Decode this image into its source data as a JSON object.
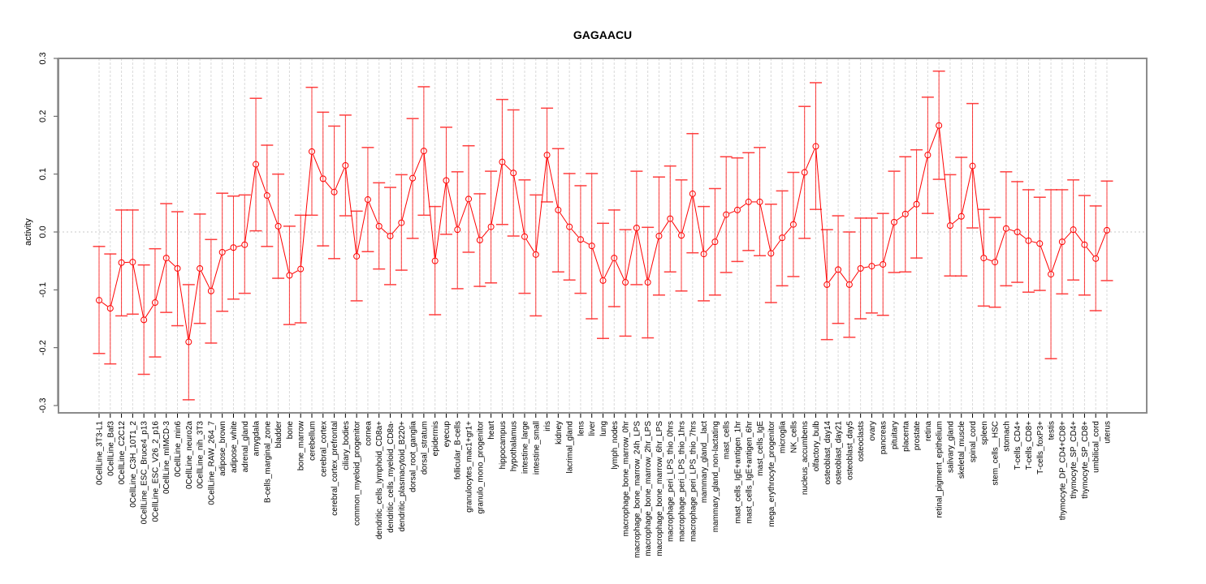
{
  "chart_data": {
    "type": "line",
    "title": "GAGAACU",
    "xlabel": "",
    "ylabel": "activity",
    "ylim": [
      -0.3,
      0.3
    ],
    "yticks": [
      -0.3,
      -0.2,
      -0.1,
      0.0,
      0.1,
      0.2,
      0.3
    ],
    "ytick_labels": [
      "-0.3",
      "-0.2",
      "-0.1",
      "0.0",
      "0.1",
      "0.2",
      "0.3"
    ],
    "grid": "vertical dashed per category, horizontal dotted at 0",
    "series_color": "#ff0000",
    "categories": [
      "0CellLine_3T3-L1",
      "0CellLine_Baf3",
      "0CellLine_C2C12",
      "0CellLine_C3H_10T1_2",
      "0CellLine_ESC_Bruce4_p13",
      "0CellLine_ESC_V26_2_p16",
      "0CellLine_mIMCD-3",
      "0CellLine_min6",
      "0CellLine_neuro2a",
      "0CellLine_nih_3T3",
      "0CellLine_RAW_264_7",
      "adipose_brown",
      "adipose_white",
      "adrenal_gland",
      "amygdala",
      "B-cells_marginal_zone",
      "bladder",
      "bone",
      "bone_marrow",
      "cerebellum",
      "cerebral_cortex",
      "cerebral_cortex_prefrontal",
      "ciliary_bodies",
      "common_myeloid_progenitor",
      "cornea",
      "dendritic_cells_lymphoid_CD8a+",
      "dendritic_cells_myeloid_CD8a-",
      "dendritic_plasmacytoid_B220+",
      "dorsal_root_ganglia",
      "dorsal_stratum",
      "epidermis",
      "eyecup",
      "follicular_B-cells",
      "granulocytes_mac1+gr1+",
      "granulo_mono_progenitor",
      "heart",
      "hippocampus",
      "hypothalamus",
      "intestine_large",
      "intestine_small",
      "iris",
      "kidney",
      "lacrimal_gland",
      "lens",
      "liver",
      "lung",
      "lymph_nodes",
      "macrophage_bone_marrow_0hr",
      "macrophage_bone_marrow_24h_LPS",
      "macrophage_bone_marrow_2hr_LPS",
      "macrophage_bone_marrow_6hr_LPS",
      "macrophage_peri_LPS_thio_0hrs",
      "macrophage_peri_LPS_thio_1hrs",
      "macrophage_peri_LPS_thio_7hrs",
      "mammary_gland__lact",
      "mammary_gland_non-lactating",
      "mast_cells",
      "mast_cells_IgE+antigen_1hr",
      "mast_cells_IgE+antigen_6hr",
      "mast_cells_IgE",
      "mega_erythrocyte_progenitor",
      "microglia",
      "NK_cells",
      "nucleus_accumbens",
      "olfactory_bulb",
      "osteoblast_day14",
      "osteoblast_day21",
      "osteoblast_day5",
      "osteoclasts",
      "ovary",
      "pancreas",
      "pituitary",
      "placenta",
      "prostate",
      "retina",
      "retinal_pigment_epithelium",
      "salivary_gland",
      "skeletal_muscle",
      "spinal_cord",
      "spleen",
      "stem_cells__HSC",
      "stomach",
      "T-cells_CD4+",
      "T-cells_CD8+",
      "T-cells_foxP3+",
      "testis",
      "thymocyte_DP_CD4+CD8+",
      "thymocyte_SP_CD4+",
      "thymocyte_SP_CD8+",
      "umbilical_cord",
      "uterus"
    ],
    "values": [
      -0.118,
      -0.132,
      -0.053,
      -0.052,
      -0.152,
      -0.122,
      -0.045,
      -0.063,
      -0.19,
      -0.063,
      -0.102,
      -0.035,
      -0.027,
      -0.022,
      0.117,
      0.063,
      0.01,
      -0.075,
      -0.064,
      0.139,
      0.092,
      0.069,
      0.115,
      -0.042,
      0.056,
      0.01,
      -0.007,
      0.016,
      0.093,
      0.14,
      -0.05,
      0.089,
      0.004,
      0.057,
      -0.014,
      0.009,
      0.121,
      0.102,
      -0.008,
      -0.039,
      0.133,
      0.038,
      0.009,
      -0.013,
      -0.024,
      -0.084,
      -0.045,
      -0.087,
      0.007,
      -0.087,
      -0.007,
      0.023,
      -0.006,
      0.066,
      -0.038,
      -0.017,
      0.03,
      0.038,
      0.052,
      0.052,
      -0.037,
      -0.01,
      0.013,
      0.103,
      0.148,
      -0.091,
      -0.065,
      -0.091,
      -0.063,
      -0.059,
      -0.056,
      0.017,
      0.031,
      0.048,
      0.133,
      0.184,
      0.011,
      0.027,
      0.114,
      -0.045,
      -0.052,
      0.006,
      0.0,
      -0.015,
      -0.02,
      -0.073,
      -0.017,
      0.004,
      -0.022,
      -0.046,
      0.003
    ],
    "upper": [
      -0.025,
      -0.038,
      0.038,
      0.038,
      -0.057,
      -0.029,
      0.049,
      0.035,
      -0.091,
      0.031,
      -0.013,
      0.067,
      0.062,
      0.064,
      0.231,
      0.15,
      0.1,
      0.01,
      0.029,
      0.25,
      0.207,
      0.183,
      0.202,
      0.036,
      0.146,
      0.085,
      0.077,
      0.099,
      0.196,
      0.251,
      0.044,
      0.181,
      0.104,
      0.149,
      0.066,
      0.105,
      0.229,
      0.211,
      0.09,
      0.064,
      0.214,
      0.144,
      0.101,
      0.08,
      0.101,
      0.015,
      0.038,
      0.004,
      0.105,
      0.008,
      0.095,
      0.114,
      0.09,
      0.17,
      0.044,
      0.075,
      0.13,
      0.128,
      0.137,
      0.146,
      0.048,
      0.071,
      0.103,
      0.217,
      0.258,
      0.004,
      0.028,
      0.0,
      0.024,
      0.024,
      0.032,
      0.105,
      0.13,
      0.142,
      0.233,
      0.278,
      0.099,
      0.129,
      0.222,
      0.039,
      0.025,
      0.104,
      0.087,
      0.073,
      0.06,
      0.073,
      0.073,
      0.09,
      0.063,
      0.045,
      0.088
    ],
    "lower": [
      -0.21,
      -0.228,
      -0.145,
      -0.142,
      -0.246,
      -0.216,
      -0.139,
      -0.162,
      -0.29,
      -0.158,
      -0.192,
      -0.137,
      -0.116,
      -0.106,
      0.002,
      -0.025,
      -0.08,
      -0.16,
      -0.157,
      0.029,
      -0.024,
      -0.046,
      0.028,
      -0.119,
      -0.034,
      -0.064,
      -0.091,
      -0.066,
      -0.011,
      0.029,
      -0.143,
      -0.004,
      -0.098,
      -0.035,
      -0.094,
      -0.088,
      0.013,
      -0.007,
      -0.106,
      -0.145,
      0.052,
      -0.069,
      -0.083,
      -0.106,
      -0.15,
      -0.184,
      -0.129,
      -0.18,
      -0.091,
      -0.183,
      -0.109,
      -0.069,
      -0.102,
      -0.036,
      -0.119,
      -0.109,
      -0.07,
      -0.051,
      -0.032,
      -0.041,
      -0.122,
      -0.093,
      -0.077,
      -0.011,
      0.039,
      -0.186,
      -0.158,
      -0.182,
      -0.15,
      -0.14,
      -0.144,
      -0.07,
      -0.069,
      -0.045,
      0.032,
      0.091,
      -0.076,
      -0.076,
      0.007,
      -0.128,
      -0.13,
      -0.093,
      -0.087,
      -0.104,
      -0.101,
      -0.219,
      -0.107,
      -0.083,
      -0.109,
      -0.136,
      -0.084
    ]
  }
}
